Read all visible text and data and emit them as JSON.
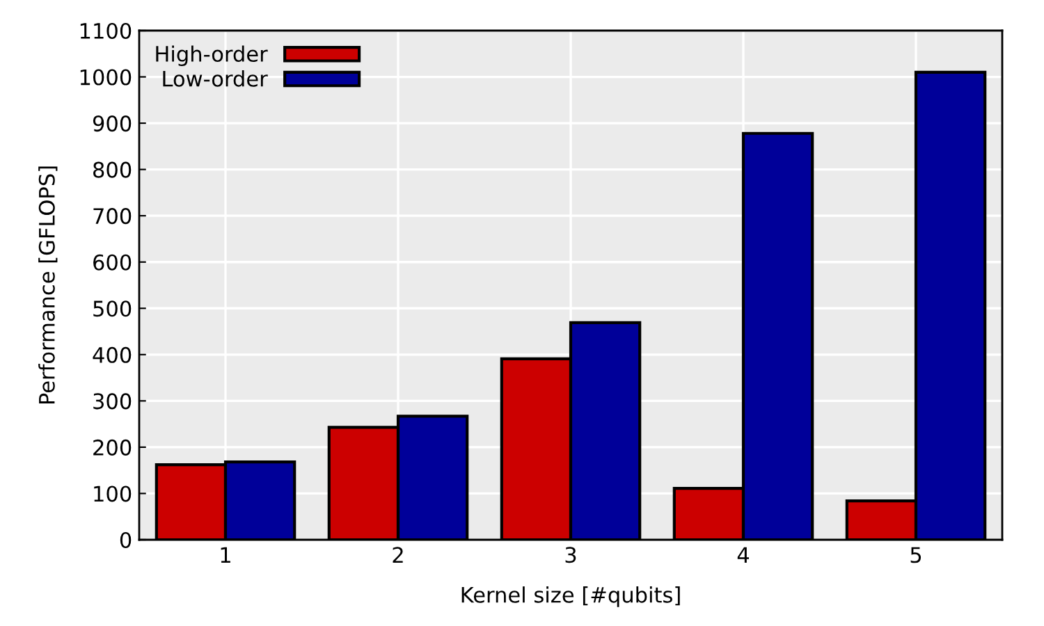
{
  "chart_data": {
    "type": "bar",
    "xlabel": "Kernel size [#qubits]",
    "ylabel": "Performance [GFLOPS]",
    "categories": [
      "1",
      "2",
      "3",
      "4",
      "5"
    ],
    "series": [
      {
        "name": "High-order",
        "color": "#cc0000",
        "values": [
          162,
          243,
          391,
          111,
          84
        ]
      },
      {
        "name": "Low-order",
        "color": "#000099",
        "values": [
          168,
          267,
          469,
          878,
          1010
        ]
      }
    ],
    "ylim": [
      0,
      1100
    ],
    "yticks": [
      0,
      100,
      200,
      300,
      400,
      500,
      600,
      700,
      800,
      900,
      1000,
      1100
    ],
    "grid": true,
    "legend": "top left"
  }
}
